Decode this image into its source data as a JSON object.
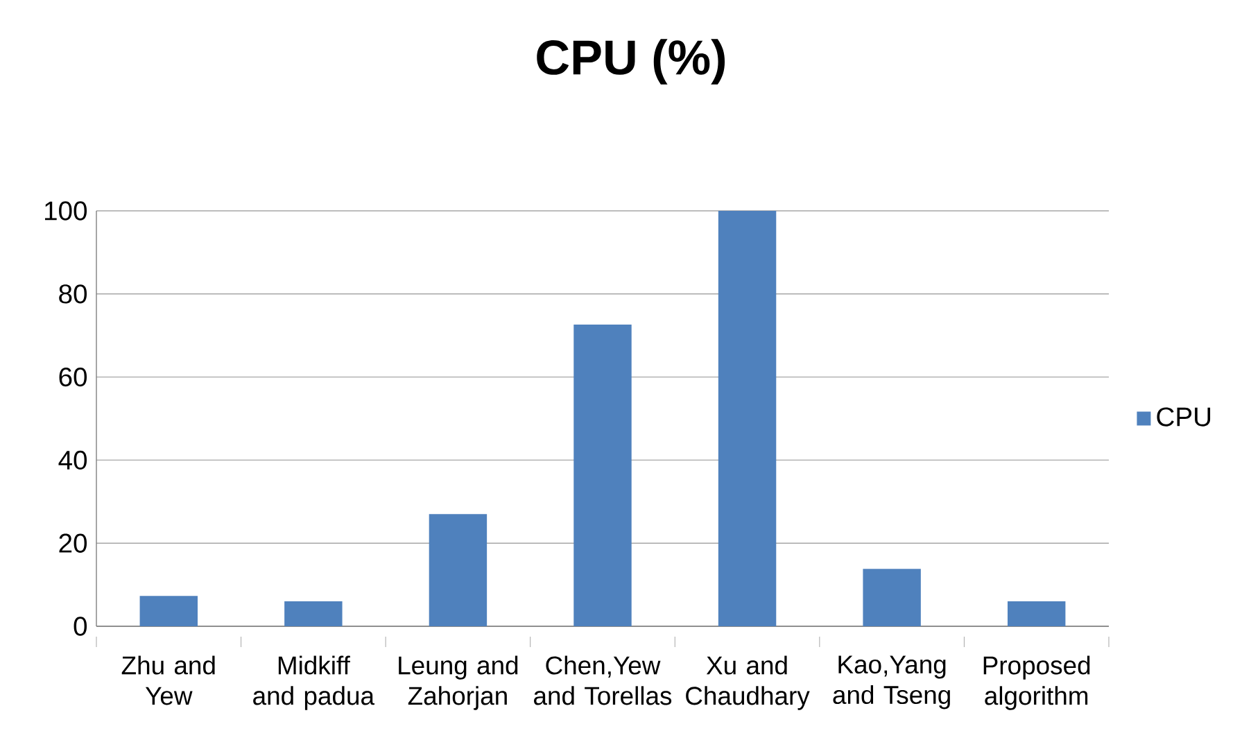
{
  "chart_data": {
    "type": "bar",
    "title": "CPU (%)",
    "categories": [
      "Zhu and Yew",
      "Midkiff and padua",
      "Leung and Zahorjan",
      "Chen,Yew and Torellas",
      "Xu and Chaudhary",
      "Kao,Yang and Tseng",
      "Proposed algorithm"
    ],
    "series": [
      {
        "name": "CPU",
        "color": "#4f81bd",
        "values": [
          7.3,
          6,
          27,
          72.6,
          100,
          13.8,
          6
        ]
      }
    ],
    "ylim": [
      0,
      100
    ],
    "yticks": [
      0,
      20,
      40,
      60,
      80,
      100
    ],
    "grid": "y",
    "legend": "right"
  }
}
